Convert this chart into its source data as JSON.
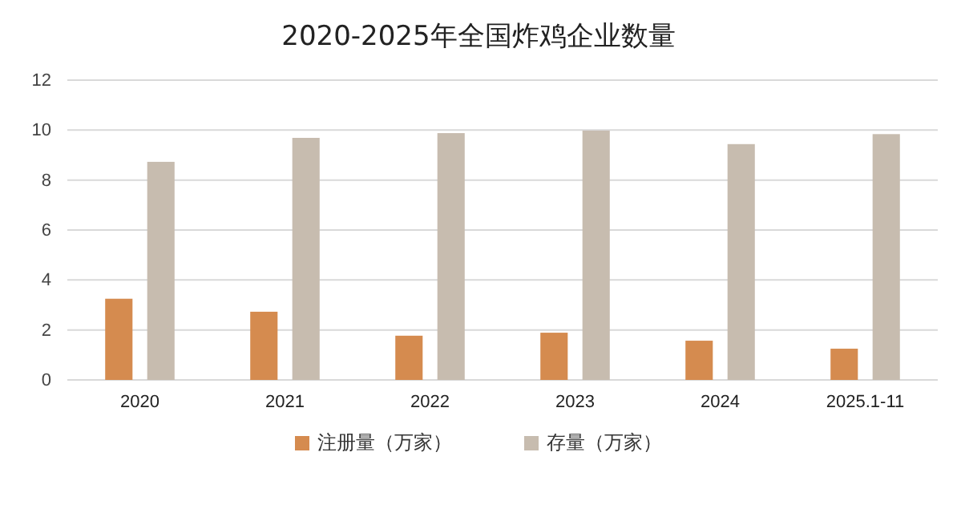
{
  "chart_data": {
    "type": "bar",
    "title": "2020-2025年全国炸鸡企业数量",
    "categories": [
      "2020",
      "2021",
      "2022",
      "2023",
      "2024",
      "2025.1-11"
    ],
    "series": [
      {
        "name": "注册量（万家）",
        "color": "#d58b4f",
        "values": [
          3.25,
          2.73,
          1.77,
          1.89,
          1.57,
          1.25
        ]
      },
      {
        "name": "存量（万家）",
        "color": "#c7bcaf",
        "values": [
          8.73,
          9.69,
          9.88,
          9.98,
          9.44,
          9.84
        ]
      }
    ],
    "ylim": [
      0,
      12
    ],
    "yticks": [
      0,
      2,
      4,
      6,
      8,
      10,
      12
    ],
    "grid": "y",
    "legend": "bottom"
  }
}
